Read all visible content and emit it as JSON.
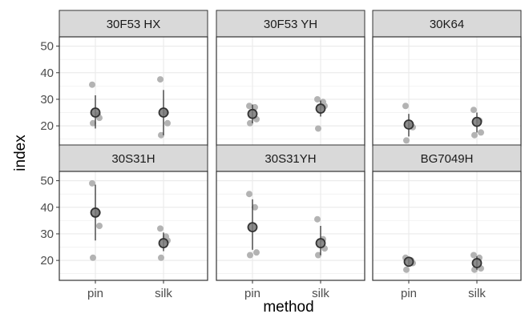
{
  "chart_data": {
    "type": "scatter",
    "facets": [
      "30F53 HX",
      "30F53 YH",
      "30K64",
      "30S31H",
      "30S31YH",
      "BG7049H"
    ],
    "categories": [
      "pin",
      "silk"
    ],
    "xlabel": "method",
    "ylabel": "index",
    "ylim": [
      12.5,
      53.5
    ],
    "yticks": [
      20,
      30,
      40,
      50
    ],
    "grid": true,
    "layout": "2 rows x 3 columns",
    "colors": {
      "panel_border": "#333333",
      "strip_fill": "#d9d9d9",
      "grid": "#ebebeb",
      "points": "#b3b3b3",
      "summary": "#333333"
    },
    "panels": [
      {
        "facet": "30F53 HX",
        "pin": {
          "points": [
            35.5,
            24.0,
            23.0,
            21.0
          ],
          "mean": 25.0,
          "lower": 19.0,
          "upper": 31.5
        },
        "silk": {
          "points": [
            37.5,
            25.0,
            21.0,
            16.5
          ],
          "mean": 25.0,
          "lower": 16.5,
          "upper": 33.5
        }
      },
      {
        "facet": "30F53 YH",
        "pin": {
          "points": [
            27.5,
            27.0,
            22.5,
            21.0
          ],
          "mean": 24.5,
          "lower": 21.0,
          "upper": 28.0
        },
        "silk": {
          "points": [
            30.0,
            29.0,
            27.5,
            19.0
          ],
          "mean": 26.5,
          "lower": 23.5,
          "upper": 29.5
        }
      },
      {
        "facet": "30K64",
        "pin": {
          "points": [
            27.5,
            20.0,
            19.5,
            14.5
          ],
          "mean": 20.5,
          "lower": 16.0,
          "upper": 24.5
        },
        "silk": {
          "points": [
            26.0,
            22.0,
            17.5,
            16.5
          ],
          "mean": 21.5,
          "lower": 17.5,
          "upper": 25.0
        }
      },
      {
        "facet": "30S31H",
        "pin": {
          "points": [
            49.0,
            38.0,
            33.0,
            21.0
          ],
          "mean": 38.0,
          "lower": 27.5,
          "upper": 48.5
        },
        "silk": {
          "points": [
            32.0,
            29.0,
            27.5,
            21.0
          ],
          "mean": 26.5,
          "lower": 23.5,
          "upper": 30.5
        }
      },
      {
        "facet": "30S31YH",
        "pin": {
          "points": [
            45.0,
            40.0,
            23.0,
            22.0
          ],
          "mean": 32.5,
          "lower": 24.0,
          "upper": 43.0
        },
        "silk": {
          "points": [
            35.5,
            28.0,
            24.5,
            22.0
          ],
          "mean": 26.5,
          "lower": 22.0,
          "upper": 33.0
        }
      },
      {
        "facet": "BG7049H",
        "pin": {
          "points": [
            21.0,
            20.0,
            19.0,
            16.5
          ],
          "mean": 19.5,
          "lower": 18.0,
          "upper": 21.0
        },
        "silk": {
          "points": [
            22.0,
            21.0,
            17.0,
            16.5
          ],
          "mean": 19.0,
          "lower": 16.5,
          "upper": 21.5
        }
      }
    ]
  }
}
